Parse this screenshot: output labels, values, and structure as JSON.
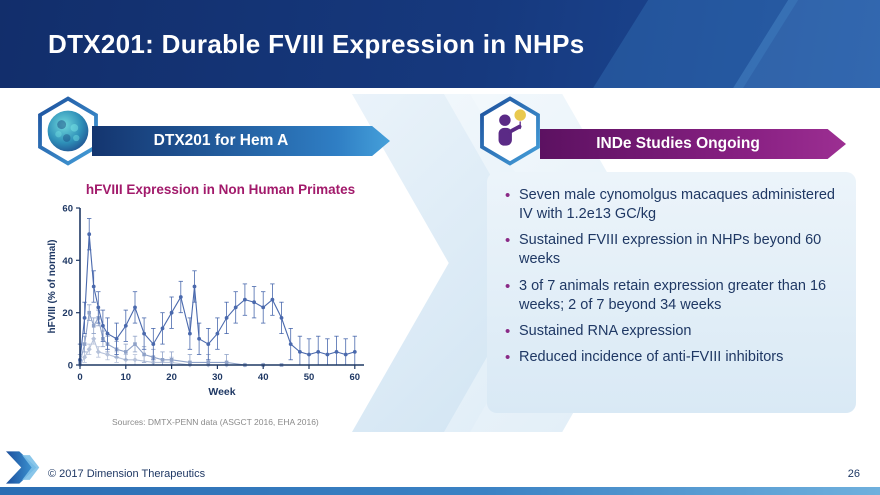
{
  "slide": {
    "title": "DTX201: Durable FVIII Expression in NHPs",
    "footer": {
      "copyright": "© 2017 Dimension Therapeutics",
      "page_number": "26"
    }
  },
  "left": {
    "banner": "DTX201 for Hem A",
    "chart_title": "hFVIII Expression in Non Human Primates",
    "sources": "Sources: DMTX-PENN data (ASGCT 2016, EHA 2016)"
  },
  "right": {
    "banner": "INDe Studies Ongoing",
    "bullets": [
      "Seven male cynomolgus macaques administered IV with 1.2e13 GC/kg",
      "Sustained FVIII expression in NHPs beyond 60 weeks",
      "3 of 7 animals retain expression greater than 16 weeks; 2 of 7 beyond 34 weeks",
      "Sustained RNA expression",
      "Reduced incidence of anti-FVIII inhibitors"
    ]
  },
  "icons": {
    "capsid": "virus-capsid-icon",
    "patient": "patient-with-iv-icon",
    "logo": "dimension-therapeutics-logo"
  },
  "colors": {
    "header_navy": "#16397e",
    "banner_blue": "#2f7ec4",
    "banner_purple": "#8a2184",
    "text_navy": "#1f3864",
    "chart_title_magenta": "#a21a6b",
    "info_box_bg": "#e4eff8",
    "bullet_purple": "#8a2a86",
    "axis_navy": "#1f3864"
  },
  "chart_data": {
    "type": "line",
    "title": "hFVIII Expression in Non Human Primates",
    "xlabel": "Week",
    "ylabel": "hFVIII (% of normal)",
    "xlim": [
      0,
      62
    ],
    "ylim": [
      0,
      60
    ],
    "xticks": [
      0,
      10,
      20,
      30,
      40,
      50,
      60
    ],
    "yticks": [
      0,
      20,
      40,
      60
    ],
    "grid": false,
    "legend": "none",
    "series": [
      {
        "name": "series-3-low-expresser",
        "color": "#b6c2da",
        "marker": "diamond",
        "err": 2,
        "x": [
          0,
          1,
          2,
          3,
          4,
          6,
          8,
          10,
          12,
          16,
          20,
          24,
          28,
          32,
          36,
          40
        ],
        "y": [
          0,
          3,
          6,
          10,
          5,
          4,
          3,
          2,
          2,
          1,
          1,
          0,
          0,
          0,
          0,
          0
        ]
      },
      {
        "name": "series-2-mid-expresser",
        "color": "#8fa2c8",
        "marker": "square",
        "err": 3,
        "x": [
          0,
          1,
          2,
          3,
          4,
          5,
          6,
          8,
          10,
          12,
          14,
          16,
          18,
          20,
          24,
          28,
          32,
          36,
          40,
          44
        ],
        "y": [
          1,
          8,
          20,
          15,
          18,
          10,
          8,
          6,
          5,
          8,
          4,
          3,
          2,
          2,
          1,
          1,
          1,
          0,
          0,
          0
        ]
      },
      {
        "name": "series-1-sustained-expresser",
        "color": "#4a69ad",
        "marker": "circle",
        "err": 6,
        "x": [
          0,
          1,
          2,
          3,
          4,
          5,
          6,
          8,
          10,
          12,
          14,
          16,
          18,
          20,
          22,
          24,
          25,
          26,
          28,
          30,
          32,
          34,
          36,
          38,
          40,
          42,
          44,
          46,
          48,
          50,
          52,
          54,
          56,
          58,
          60
        ],
        "y": [
          2,
          18,
          50,
          30,
          22,
          15,
          12,
          10,
          15,
          22,
          12,
          8,
          14,
          20,
          26,
          12,
          30,
          10,
          8,
          12,
          18,
          22,
          25,
          24,
          22,
          25,
          18,
          8,
          5,
          4,
          5,
          4,
          5,
          4,
          5
        ]
      }
    ]
  }
}
